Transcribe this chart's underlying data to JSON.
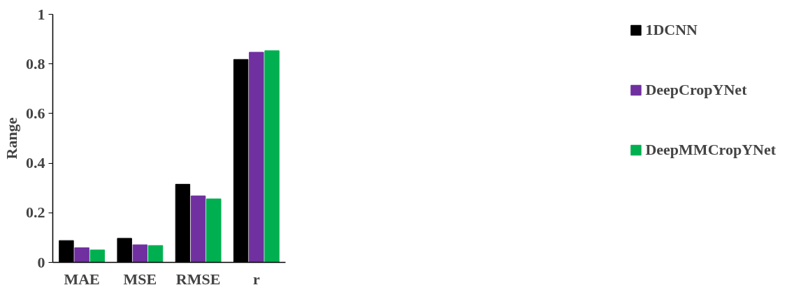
{
  "chart_data": {
    "type": "bar",
    "ylabel": "Range",
    "categories": [
      "MAE",
      "MSE",
      "RMSE",
      "r"
    ],
    "series": [
      {
        "name": "1DCNN",
        "color": "#000000",
        "values": [
          0.088,
          0.097,
          0.315,
          0.818
        ]
      },
      {
        "name": "DeepCropYNet",
        "color": "#7030a0",
        "values": [
          0.059,
          0.071,
          0.268,
          0.847
        ]
      },
      {
        "name": "DeepMMCropYNet",
        "color": "#00b050",
        "values": [
          0.05,
          0.068,
          0.256,
          0.853
        ]
      }
    ],
    "ylim": [
      0,
      1
    ],
    "yticks": [
      0,
      0.2,
      0.4,
      0.6,
      0.8,
      1
    ],
    "grid": false,
    "legend": "right"
  }
}
